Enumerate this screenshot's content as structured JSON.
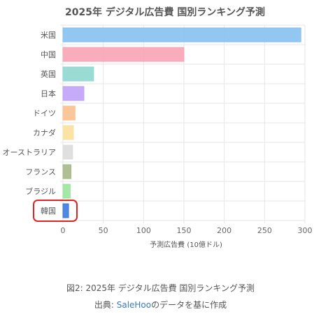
{
  "chart_data": {
    "type": "bar",
    "orientation": "horizontal",
    "title": "2025年 デジタル広告費 国別ランキング予測",
    "xlabel": "予測広告費 (10億ドル)",
    "ylabel": "",
    "categories": [
      "米国",
      "中国",
      "英国",
      "日本",
      "ドイツ",
      "カナダ",
      "オーストラリア",
      "フランス",
      "ブラジル",
      "韓国"
    ],
    "values": [
      295,
      150,
      38,
      26,
      15,
      13,
      12,
      10,
      9,
      7
    ],
    "colors": [
      "#85c1f0",
      "#f8a3b5",
      "#8fd8cf",
      "#c0a2f7",
      "#fbc08f",
      "#fbe09c",
      "#dcdcdc",
      "#a8b88a",
      "#9be59b",
      "#3a7be0"
    ],
    "xlim": [
      0,
      300
    ],
    "xticks": [
      0,
      50,
      100,
      150,
      200,
      250,
      300
    ],
    "grid": true,
    "legend": "none",
    "highlight": {
      "category": "韓国",
      "color": "#e02424"
    }
  },
  "caption": {
    "line1": "図2: 2025年 デジタル広告費 国別ランキング予測",
    "source_prefix": "出典: ",
    "source_link": "SaleHoo",
    "source_suffix": "のデータを基に作成"
  }
}
